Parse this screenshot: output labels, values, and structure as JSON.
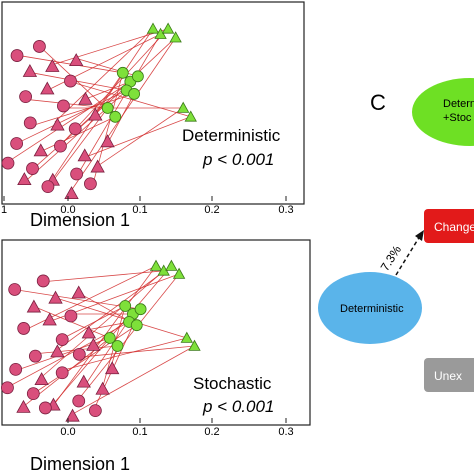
{
  "colors": {
    "magenta": "#d94f7c",
    "magenta_stroke": "#7a1f3f",
    "green": "#7ee03a",
    "green_stroke": "#3a7a18",
    "line_red": "#d22a2a",
    "blue_ellipse": "#5ab4ea",
    "green_ellipse": "#6ee024",
    "red_box": "#e21a1a",
    "gray_box": "#9a9a9a"
  },
  "panel_top": {
    "label_line1": "Deterministic",
    "label_line2": "p < 0.001",
    "xlabel": "Dimension 1",
    "tick_labels": [
      "1",
      "0.0",
      "0.1",
      "0.2",
      "0.3"
    ]
  },
  "panel_bottom": {
    "label_line1": "Stochastic",
    "label_line2": "p < 0.001",
    "xlabel": "Dimension 1",
    "tick_labels": [
      "0.0",
      "0.1",
      "0.2",
      "0.3"
    ]
  },
  "panel_c": {
    "letter": "C",
    "green_ellipse_line1": "Detern",
    "green_ellipse_line2": "+Stoc",
    "red_box_label": "Change",
    "blue_ellipse_label": "Deterministic",
    "arrow_percent": "7.3%",
    "gray_box_label": "Unex"
  },
  "chart_data": [
    {
      "type": "scatter",
      "xlabel": "Dimension 1",
      "xlim": [
        -0.1,
        0.3
      ],
      "marker_shapes": [
        "circle",
        "triangle"
      ],
      "groups": [
        {
          "color": "magenta",
          "points": [
            [
              -0.08,
              0.8
            ],
            [
              -0.06,
              0.7
            ],
            [
              -0.05,
              0.85
            ],
            [
              -0.03,
              0.75
            ],
            [
              -0.01,
              0.65
            ],
            [
              0.0,
              0.78
            ],
            [
              -0.07,
              0.55
            ],
            [
              -0.04,
              0.6
            ],
            [
              -0.02,
              0.5
            ],
            [
              0.01,
              0.55
            ],
            [
              -0.06,
              0.4
            ],
            [
              -0.03,
              0.42
            ],
            [
              0.0,
              0.38
            ],
            [
              0.02,
              0.45
            ],
            [
              -0.08,
              0.3
            ],
            [
              -0.05,
              0.25
            ],
            [
              -0.02,
              0.3
            ],
            [
              0.01,
              0.22
            ],
            [
              -0.06,
              0.15
            ],
            [
              -0.03,
              0.1
            ],
            [
              0.0,
              0.12
            ],
            [
              0.03,
              0.18
            ],
            [
              -0.09,
              0.2
            ],
            [
              0.04,
              0.3
            ],
            [
              -0.04,
              0.05
            ],
            [
              -0.01,
              0.02
            ],
            [
              0.02,
              0.06
            ],
            [
              -0.07,
              0.08
            ]
          ]
        },
        {
          "color": "green",
          "points": [
            [
              0.06,
              0.7
            ],
            [
              0.07,
              0.65
            ],
            [
              0.08,
              0.68
            ],
            [
              0.065,
              0.6
            ],
            [
              0.075,
              0.58
            ],
            [
              0.04,
              0.5
            ],
            [
              0.05,
              0.45
            ],
            [
              0.1,
              0.95
            ],
            [
              0.11,
              0.92
            ],
            [
              0.12,
              0.95
            ],
            [
              0.13,
              0.9
            ],
            [
              0.14,
              0.5
            ],
            [
              0.15,
              0.45
            ]
          ]
        }
      ]
    }
  ]
}
